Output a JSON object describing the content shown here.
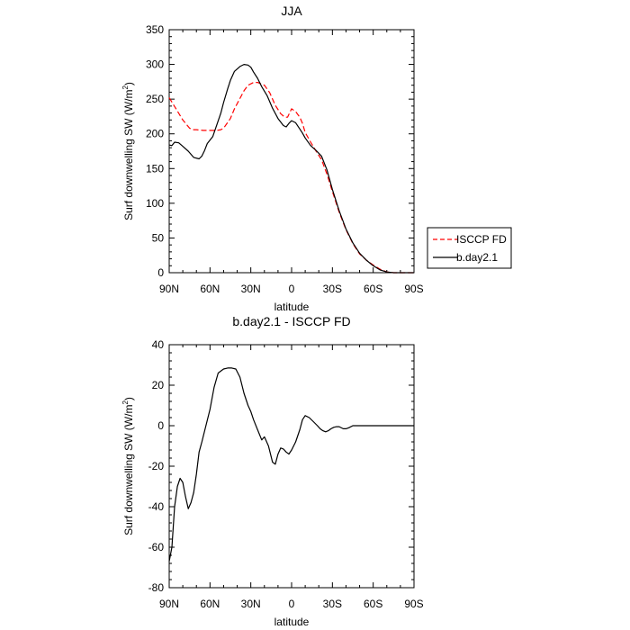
{
  "chart_data": [
    {
      "type": "line",
      "title": "JJA",
      "xlabel": "latitude",
      "ylabel": "Surf downwelling SW (W/m²)",
      "ylabel_main": "Surf downwelling SW (W/m",
      "ylabel_sup": "2",
      "ylabel_end": ")",
      "xlim": [
        -90,
        90
      ],
      "ylim": [
        0,
        350
      ],
      "xticks": [
        {
          "value": -90,
          "label": "90N"
        },
        {
          "value": -60,
          "label": "60N"
        },
        {
          "value": -30,
          "label": "30N"
        },
        {
          "value": 0,
          "label": "0"
        },
        {
          "value": 30,
          "label": "30S"
        },
        {
          "value": 60,
          "label": "60S"
        },
        {
          "value": 90,
          "label": "90S"
        }
      ],
      "yticks": [
        0,
        50,
        100,
        150,
        200,
        250,
        300,
        350
      ],
      "legend": [
        {
          "label": "ISCCP FD",
          "color": "#ff0000",
          "dash": true
        },
        {
          "label": "b.day2.1",
          "color": "#000000",
          "dash": false
        }
      ],
      "series": [
        {
          "name": "ISCCP FD",
          "color": "#ff0000",
          "dashed": true,
          "x": [
            -90,
            -85,
            -80,
            -75,
            -72,
            -70,
            -65,
            -60,
            -55,
            -52,
            -50,
            -45,
            -42,
            -38,
            -35,
            -32,
            -28,
            -25,
            -20,
            -16,
            -12,
            -8,
            -5,
            -3,
            0,
            3,
            6,
            8,
            10,
            14,
            18,
            22,
            26,
            30,
            35,
            40,
            45,
            50,
            55,
            60,
            65,
            70,
            75,
            80,
            85,
            90
          ],
          "y": [
            252,
            236,
            220,
            208,
            206,
            206,
            205,
            205,
            205,
            206,
            208,
            222,
            236,
            251,
            262,
            270,
            274,
            274,
            270,
            259,
            241,
            229,
            224,
            224,
            236,
            232,
            224,
            215,
            202,
            188,
            175,
            163,
            142,
            117,
            87,
            62,
            42,
            27,
            18,
            11,
            5,
            1,
            0,
            0,
            0,
            0
          ]
        },
        {
          "name": "b.day2.1",
          "color": "#000000",
          "dashed": false,
          "x": [
            -90,
            -88,
            -86,
            -83,
            -80,
            -76,
            -72,
            -68,
            -66,
            -64,
            -62,
            -58,
            -55,
            -52,
            -50,
            -47,
            -45,
            -42,
            -38,
            -35,
            -32,
            -30,
            -28,
            -25,
            -22,
            -18,
            -14,
            -10,
            -6,
            -4,
            -2,
            0,
            3,
            6,
            8,
            10,
            14,
            18,
            22,
            26,
            30,
            35,
            40,
            45,
            50,
            55,
            60,
            65,
            70,
            75,
            80,
            85,
            90
          ],
          "y": [
            184,
            183,
            188,
            187,
            182,
            175,
            166,
            164,
            168,
            176,
            186,
            196,
            213,
            230,
            245,
            265,
            277,
            290,
            297,
            300,
            299,
            296,
            289,
            280,
            268,
            255,
            237,
            222,
            212,
            210,
            215,
            219,
            216,
            207,
            201,
            194,
            183,
            176,
            168,
            148,
            120,
            89,
            63,
            43,
            28,
            18,
            10,
            4,
            1,
            0,
            0,
            0,
            0
          ]
        }
      ]
    },
    {
      "type": "line",
      "title": "b.day2.1 - ISCCP FD",
      "xlabel": "latitude",
      "ylabel": "Surf downwelling SW (W/m²)",
      "ylabel_main": "Surf downwelling SW (W/m",
      "ylabel_sup": "2",
      "ylabel_end": ")",
      "xlim": [
        -90,
        90
      ],
      "ylim": [
        -80,
        40
      ],
      "xticks": [
        {
          "value": -90,
          "label": "90N"
        },
        {
          "value": -60,
          "label": "60N"
        },
        {
          "value": -30,
          "label": "30N"
        },
        {
          "value": 0,
          "label": "0"
        },
        {
          "value": 30,
          "label": "30S"
        },
        {
          "value": 60,
          "label": "60S"
        },
        {
          "value": 90,
          "label": "90S"
        }
      ],
      "yticks": [
        -80,
        -60,
        -40,
        -20,
        0,
        20,
        40
      ],
      "series": [
        {
          "name": "b.day2.1 - ISCCP FD",
          "color": "#000000",
          "dashed": false,
          "x": [
            -90,
            -88,
            -86,
            -84,
            -82,
            -80,
            -78,
            -76,
            -74,
            -72,
            -70,
            -68,
            -66,
            -63,
            -60,
            -57,
            -54,
            -50,
            -47,
            -44,
            -41,
            -38,
            -35,
            -32,
            -30,
            -28,
            -25,
            -22,
            -20,
            -17,
            -14,
            -12,
            -10,
            -8,
            -6,
            -4,
            -2,
            0,
            3,
            6,
            8,
            10,
            13,
            16,
            19,
            21,
            23,
            25,
            27,
            29,
            31,
            33,
            35,
            38,
            40,
            42,
            45,
            48,
            51,
            54,
            57,
            60,
            63,
            66,
            70,
            75,
            80,
            85,
            90
          ],
          "y": [
            -67,
            -60,
            -40,
            -30,
            -26,
            -28,
            -35,
            -41,
            -38,
            -33,
            -24,
            -13,
            -8,
            0,
            8,
            19,
            26,
            28,
            28.5,
            28.5,
            28,
            24,
            16,
            10,
            7,
            3,
            -2,
            -7,
            -5.5,
            -10,
            -18,
            -19,
            -14,
            -11,
            -11.5,
            -13,
            -14,
            -12,
            -8,
            -2,
            3,
            5,
            4,
            2,
            0,
            -1.5,
            -2.5,
            -3,
            -2.5,
            -1.5,
            -0.8,
            -0.5,
            -0.5,
            -1.5,
            -1.5,
            -1,
            0,
            0,
            0,
            0,
            0,
            0,
            0,
            0,
            0,
            0,
            0,
            0,
            0
          ]
        }
      ]
    }
  ]
}
